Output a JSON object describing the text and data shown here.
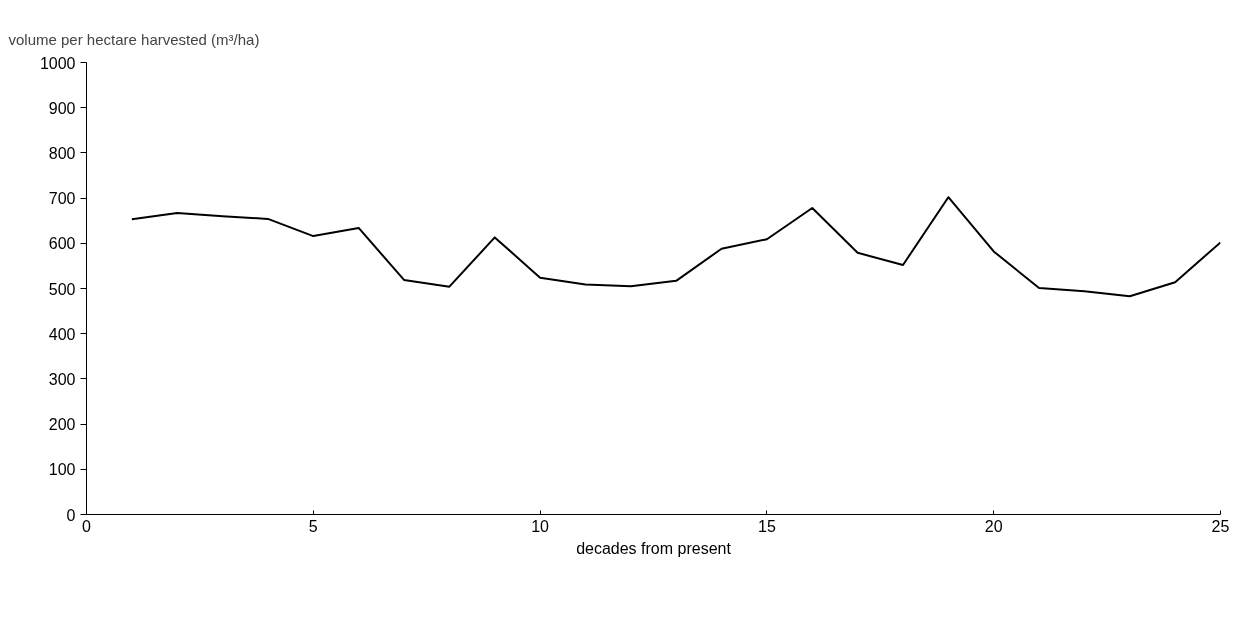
{
  "chart_data": {
    "type": "line",
    "ylabel": "volume per hectare harvested (m³/ha)",
    "xlabel": "decades from present",
    "x": [
      1,
      2,
      3,
      4,
      5,
      6,
      7,
      8,
      9,
      10,
      11,
      12,
      13,
      14,
      15,
      16,
      17,
      18,
      19,
      20,
      21,
      22,
      23,
      24,
      25
    ],
    "series": [
      {
        "color": "#000000",
        "values": [
          653,
          667,
          660,
          654,
          616,
          634,
          519,
          504,
          613,
          524,
          509,
          505,
          517,
          588,
          609,
          678,
          579,
          552,
          702,
          582,
          501,
          494,
          483,
          514,
          602
        ]
      }
    ],
    "xlim": [
      0,
      25
    ],
    "xticks": [
      0,
      5,
      10,
      15,
      20,
      25
    ],
    "ylim": [
      0,
      1000
    ],
    "yticks": [
      0,
      100,
      200,
      300,
      400,
      500,
      600,
      700,
      800,
      900,
      1000
    ],
    "grid": false,
    "marker": "none",
    "line_style": "solid"
  }
}
